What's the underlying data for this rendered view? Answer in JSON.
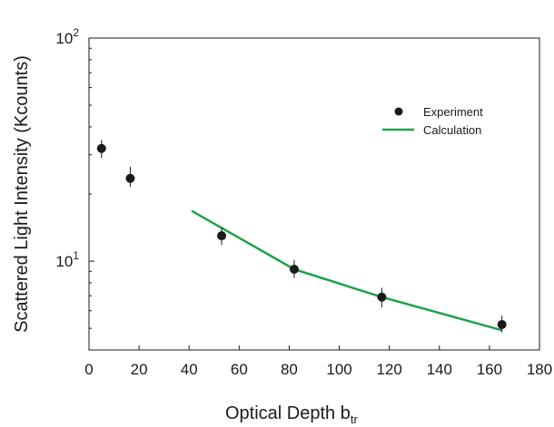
{
  "chart_data": {
    "type": "scatter",
    "xlabel": "Optical Depth b",
    "xlabel_subscript": "tr",
    "ylabel": "Scattered Light Intensity (Kcounts)",
    "xlim": [
      0,
      180
    ],
    "ylim": [
      4,
      100
    ],
    "yscale": "log",
    "x_ticks": [
      "0",
      "20",
      "40",
      "60",
      "80",
      "100",
      "120",
      "140",
      "160",
      "180"
    ],
    "y_ticks": [
      {
        "base": "10",
        "exp": "1",
        "value": 10
      },
      {
        "base": "10",
        "exp": "2",
        "value": 100
      }
    ],
    "legend_position": "upper-right",
    "grid": false,
    "series": [
      {
        "name": "Experiment",
        "kind": "points",
        "color": "#1a1a1a",
        "x": [
          5,
          16.5,
          53,
          82,
          117,
          165
        ],
        "y": [
          32,
          23.5,
          13,
          9.2,
          6.9,
          5.2
        ],
        "err_low": [
          29,
          21.5,
          11.8,
          8.4,
          6.2,
          4.8
        ],
        "err_high": [
          35,
          26.5,
          14.2,
          10.1,
          7.6,
          5.7
        ]
      },
      {
        "name": "Calculation",
        "kind": "line",
        "color": "#1fa34a",
        "x": [
          41,
          82,
          117,
          165
        ],
        "y": [
          16.8,
          9.2,
          6.9,
          4.9
        ]
      }
    ]
  }
}
